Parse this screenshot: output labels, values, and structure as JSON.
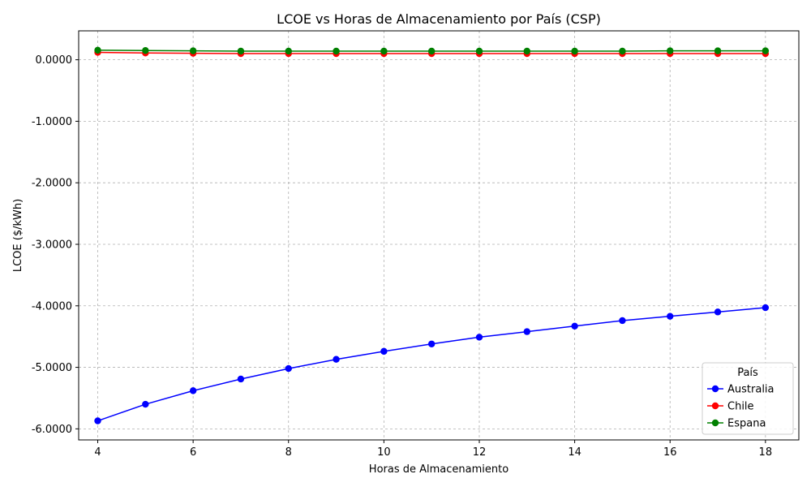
{
  "chart_data": {
    "type": "line",
    "title": "LCOE vs Horas de Almacenamiento por País (CSP)",
    "xlabel": "Horas de Almacenamiento",
    "ylabel": "LCOE ($/kWh)",
    "xlim": [
      3.6,
      18.7
    ],
    "ylim": [
      -6.18,
      0.47
    ],
    "x_ticks": [
      4,
      6,
      8,
      10,
      12,
      14,
      16,
      18
    ],
    "x_tick_labels": [
      "4",
      "6",
      "8",
      "10",
      "12",
      "14",
      "16",
      "18"
    ],
    "y_ticks": [
      0,
      -1,
      -2,
      -3,
      -4,
      -5,
      -6
    ],
    "y_tick_labels": [
      "0.0000",
      "-1.0000",
      "-2.0000",
      "-3.0000",
      "-4.0000",
      "-5.0000",
      "-6.0000"
    ],
    "grid": true,
    "legend_title": "País",
    "legend_position": "lower-right",
    "x": [
      4,
      5,
      6,
      7,
      8,
      9,
      10,
      11,
      12,
      13,
      14,
      15,
      16,
      17,
      18
    ],
    "series": [
      {
        "name": "Australia",
        "color": "#0000ff",
        "values": [
          -5.87,
          -5.6,
          -5.38,
          -5.19,
          -5.02,
          -4.87,
          -4.74,
          -4.62,
          -4.51,
          -4.42,
          -4.33,
          -4.24,
          -4.17,
          -4.1,
          -4.03
        ]
      },
      {
        "name": "Chile",
        "color": "#ff0000",
        "values": [
          0.12,
          0.11,
          0.105,
          0.1,
          0.1,
          0.1,
          0.1,
          0.1,
          0.1,
          0.1,
          0.1,
          0.1,
          0.1,
          0.1,
          0.1
        ]
      },
      {
        "name": "Espana",
        "color": "#008000",
        "values": [
          0.155,
          0.15,
          0.145,
          0.14,
          0.14,
          0.14,
          0.14,
          0.14,
          0.14,
          0.14,
          0.14,
          0.14,
          0.145,
          0.145,
          0.145
        ]
      }
    ]
  }
}
